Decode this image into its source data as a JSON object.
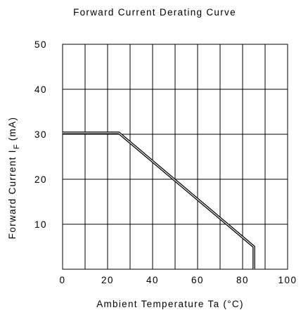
{
  "chart_data": {
    "type": "line",
    "title": "Forward Current Derating Curve",
    "xlabel": "Ambient Temperature Ta (°C)",
    "ylabel_main": "Forward Current  I",
    "ylabel_sub": "F",
    "ylabel_unit": "(mA)",
    "xlim": [
      0,
      100
    ],
    "ylim": [
      0,
      50
    ],
    "x_ticks": [
      "0",
      "20",
      "40",
      "60",
      "80",
      "100"
    ],
    "y_ticks": [
      "10",
      "20",
      "30",
      "40",
      "50"
    ],
    "grid": true,
    "series": [
      {
        "x": [
          0,
          25,
          85,
          85
        ],
        "y": [
          30.3,
          30.3,
          5,
          0
        ]
      }
    ]
  }
}
